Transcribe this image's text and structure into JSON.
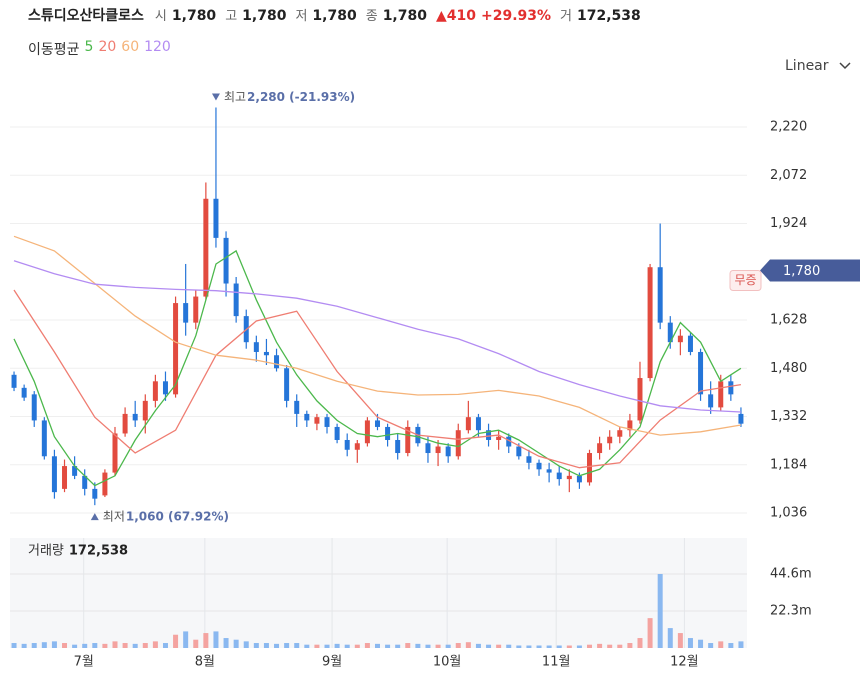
{
  "header": {
    "name": "스튜디오산타클로스",
    "fields": [
      {
        "label": "시",
        "value": "1,780"
      },
      {
        "label": "고",
        "value": "1,780"
      },
      {
        "label": "저",
        "value": "1,780"
      },
      {
        "label": "종",
        "value": "1,780"
      }
    ],
    "change": "▲410",
    "change_pct": "+29.93%",
    "volume_label": "거",
    "volume": "172,538"
  },
  "scale_mode": "Linear",
  "chart_data": {
    "type": "candlestick",
    "legend_title": "이동평균",
    "up_color": "#e24b3f",
    "down_color": "#2575d8",
    "up_volume_color": "#f4a3a0",
    "down_volume_color": "#8ab8f0",
    "open": [
      1460,
      1420,
      1400,
      1320,
      1210,
      1110,
      1180,
      1150,
      1110,
      1090,
      1160,
      1280,
      1340,
      1320,
      1380,
      1440,
      1400,
      1680,
      1620,
      1700,
      2000,
      1880,
      1740,
      1640,
      1560,
      1530,
      1520,
      1480,
      1380,
      1340,
      1310,
      1330,
      1300,
      1260,
      1230,
      1250,
      1320,
      1300,
      1260,
      1220,
      1300,
      1250,
      1220,
      1240,
      1210,
      1290,
      1330,
      1290,
      1260,
      1270,
      1240,
      1210,
      1190,
      1170,
      1160,
      1140,
      1150,
      1130,
      1220,
      1250,
      1270,
      1290,
      1320,
      1450,
      1790,
      1620,
      1560,
      1580,
      1530,
      1400,
      1360,
      1440,
      1340
    ],
    "high": [
      1470,
      1430,
      1410,
      1330,
      1230,
      1200,
      1210,
      1170,
      1130,
      1170,
      1300,
      1360,
      1380,
      1400,
      1460,
      1470,
      1700,
      1800,
      1720,
      2050,
      2280,
      1900,
      1760,
      1660,
      1580,
      1570,
      1540,
      1490,
      1400,
      1350,
      1340,
      1340,
      1310,
      1280,
      1260,
      1330,
      1340,
      1310,
      1280,
      1320,
      1310,
      1270,
      1260,
      1250,
      1310,
      1380,
      1340,
      1310,
      1290,
      1280,
      1250,
      1230,
      1200,
      1190,
      1180,
      1170,
      1160,
      1230,
      1270,
      1290,
      1300,
      1340,
      1500,
      1800,
      1924,
      1640,
      1600,
      1590,
      1540,
      1440,
      1460,
      1460,
      1360
    ],
    "low": [
      1410,
      1380,
      1300,
      1200,
      1080,
      1100,
      1140,
      1090,
      1060,
      1085,
      1150,
      1270,
      1300,
      1280,
      1360,
      1380,
      1390,
      1580,
      1600,
      1690,
      1850,
      1700,
      1620,
      1540,
      1500,
      1490,
      1470,
      1360,
      1300,
      1300,
      1290,
      1280,
      1250,
      1210,
      1190,
      1240,
      1290,
      1240,
      1200,
      1210,
      1240,
      1190,
      1180,
      1190,
      1200,
      1280,
      1270,
      1240,
      1230,
      1220,
      1200,
      1170,
      1150,
      1130,
      1120,
      1100,
      1110,
      1120,
      1200,
      1230,
      1250,
      1270,
      1310,
      1440,
      1600,
      1540,
      1520,
      1520,
      1380,
      1340,
      1350,
      1380,
      1300
    ],
    "close": [
      1420,
      1390,
      1320,
      1210,
      1100,
      1180,
      1150,
      1110,
      1080,
      1160,
      1280,
      1340,
      1320,
      1380,
      1440,
      1400,
      1680,
      1620,
      1700,
      2000,
      1880,
      1740,
      1640,
      1560,
      1530,
      1520,
      1480,
      1380,
      1340,
      1320,
      1330,
      1300,
      1260,
      1230,
      1250,
      1320,
      1300,
      1260,
      1220,
      1300,
      1250,
      1220,
      1240,
      1210,
      1290,
      1330,
      1290,
      1260,
      1270,
      1240,
      1210,
      1190,
      1170,
      1160,
      1140,
      1150,
      1130,
      1220,
      1250,
      1270,
      1290,
      1320,
      1450,
      1790,
      1620,
      1560,
      1580,
      1530,
      1400,
      1360,
      1440,
      1400,
      1310
    ],
    "volume": [
      3,
      2.5,
      3,
      3.5,
      4,
      3,
      2,
      2.5,
      3,
      2.5,
      4,
      3,
      2.5,
      3,
      4,
      3,
      8,
      10,
      5,
      9,
      10,
      6,
      5,
      4,
      3,
      3,
      2.5,
      3,
      3,
      2,
      2,
      2,
      2.5,
      2,
      2,
      3,
      2.5,
      2,
      2,
      3,
      2.5,
      2,
      2,
      2,
      3,
      3.5,
      2.5,
      2,
      2,
      2,
      1.5,
      1.5,
      1.5,
      1.5,
      1.5,
      1.5,
      1.5,
      2,
      2.5,
      2,
      2,
      3,
      6,
      18,
      44.6,
      12,
      9,
      6,
      5,
      3,
      4,
      3,
      4
    ],
    "ma_series": [
      {
        "name": "5",
        "color": "#4cb84c",
        "x": [
          0,
          2,
          4,
          6,
          8,
          10,
          12,
          14,
          16,
          18,
          20,
          22,
          24,
          26,
          28,
          30,
          32,
          34,
          36,
          38,
          40,
          42,
          44,
          46,
          48,
          50,
          52,
          54,
          56,
          58,
          60,
          62,
          64,
          66,
          68,
          70,
          72
        ],
        "values": [
          1570,
          1440,
          1270,
          1180,
          1120,
          1150,
          1260,
          1350,
          1430,
          1580,
          1800,
          1840,
          1690,
          1560,
          1460,
          1380,
          1320,
          1280,
          1270,
          1280,
          1270,
          1250,
          1240,
          1280,
          1290,
          1260,
          1220,
          1180,
          1150,
          1170,
          1230,
          1300,
          1500,
          1620,
          1560,
          1440,
          1480
        ]
      },
      {
        "name": "20",
        "color": "#ef7d72",
        "x": [
          0,
          4,
          8,
          12,
          16,
          20,
          24,
          28,
          32,
          36,
          40,
          44,
          48,
          52,
          56,
          60,
          64,
          68,
          72
        ],
        "values": [
          1720,
          1530,
          1330,
          1220,
          1290,
          1520,
          1625,
          1655,
          1470,
          1330,
          1275,
          1262,
          1275,
          1210,
          1175,
          1190,
          1321,
          1410,
          1430
        ]
      },
      {
        "name": "60",
        "color": "#f5b47a",
        "x": [
          0,
          4,
          8,
          12,
          16,
          20,
          24,
          28,
          32,
          36,
          40,
          44,
          48,
          52,
          56,
          60,
          64,
          68,
          72
        ],
        "values": [
          1885,
          1840,
          1740,
          1640,
          1560,
          1520,
          1505,
          1480,
          1440,
          1410,
          1398,
          1400,
          1412,
          1395,
          1360,
          1300,
          1275,
          1285,
          1306
        ]
      },
      {
        "name": "120",
        "color": "#b38cf2",
        "x": [
          0,
          4,
          8,
          12,
          16,
          20,
          24,
          28,
          32,
          36,
          40,
          44,
          48,
          52,
          56,
          60,
          64,
          68,
          72
        ],
        "values": [
          1810,
          1770,
          1738,
          1728,
          1722,
          1718,
          1708,
          1695,
          1670,
          1635,
          1600,
          1570,
          1525,
          1470,
          1430,
          1395,
          1365,
          1352,
          1346
        ]
      }
    ],
    "xlim": [
      -0.4,
      72.6
    ],
    "xticks": [
      {
        "value": 6.9,
        "label": "7월"
      },
      {
        "value": 18.9,
        "label": "8월"
      },
      {
        "value": 31.5,
        "label": "9월"
      },
      {
        "value": 42.9,
        "label": "10월"
      },
      {
        "value": 53.7,
        "label": "11월"
      },
      {
        "value": 66.4,
        "label": "12월"
      }
    ],
    "ylim": [
      990,
      2349
    ],
    "yticks": [
      {
        "value": 2220,
        "label": "2,220"
      },
      {
        "value": 2072,
        "label": "2,072"
      },
      {
        "value": 1924,
        "label": "1,924"
      },
      {
        "value": 1628,
        "label": "1,628"
      },
      {
        "value": 1480,
        "label": "1,480"
      },
      {
        "value": 1332,
        "label": "1,332"
      },
      {
        "value": 1184,
        "label": "1,184"
      },
      {
        "value": 1036,
        "label": "1,036"
      }
    ],
    "grid": true,
    "last_price": {
      "value": 1780,
      "label": "1,780"
    },
    "last_price_tag": "무증",
    "annotations": [
      {
        "text": "최고",
        "value_text": "2,280 (-21.93%)",
        "x": 20,
        "y": 2280,
        "direction": "down"
      },
      {
        "text": "최저",
        "value_text": "1,060 (67.92%)",
        "x": 8,
        "y": 1060,
        "direction": "up"
      }
    ],
    "volume_title": "거래량",
    "volume_value": "172,538",
    "volume_ylim": [
      0,
      66.3
    ],
    "volume_yticks": [
      {
        "value": 44.6,
        "label": "44.6m"
      },
      {
        "value": 22.3,
        "label": "22.3m"
      }
    ]
  }
}
